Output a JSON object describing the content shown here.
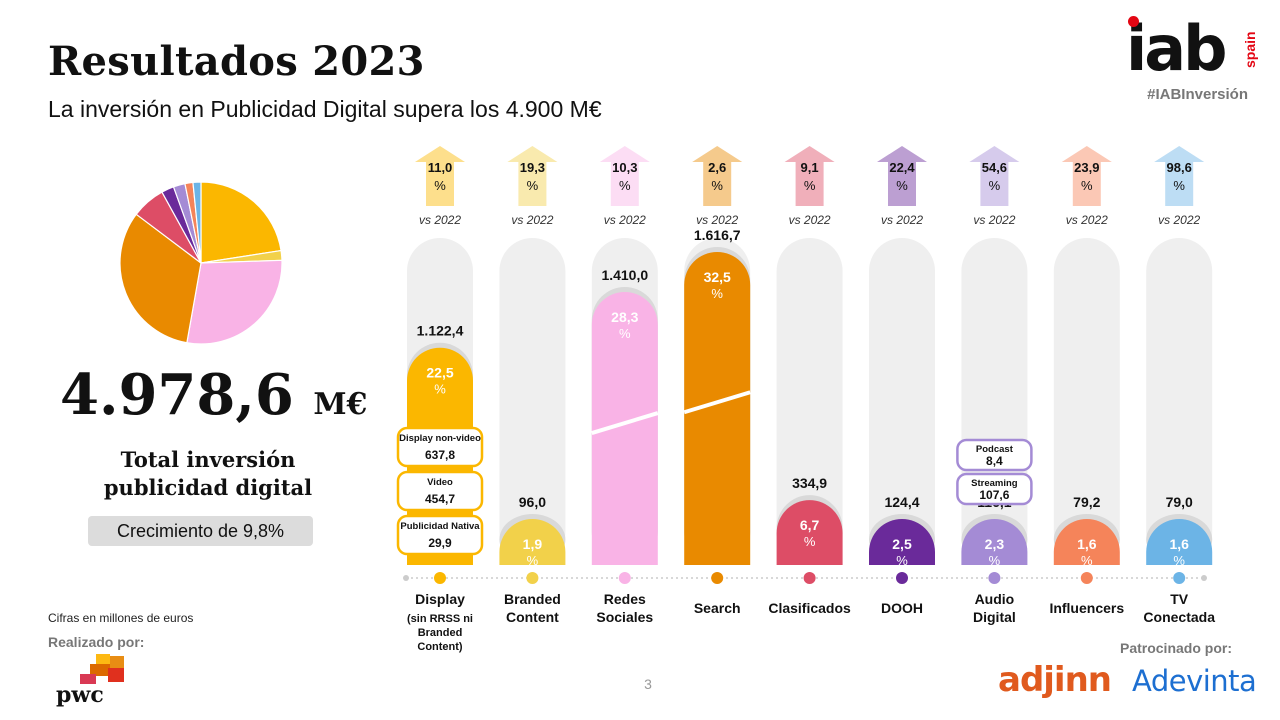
{
  "header": {
    "title": "Resultados 2023",
    "subtitle": "La inversión en Publicidad Digital supera los 4.900 M€"
  },
  "logo": {
    "brand": "iab",
    "region": "spain",
    "hashtag": "#IABInversión"
  },
  "summary": {
    "total_value": "4.978,6",
    "total_unit": "M€",
    "total_label_line1": "Total inversión",
    "total_label_line2": "publicidad digital",
    "growth": "Crecimiento de 9,8%"
  },
  "footer": {
    "note": "Cifras en millones de euros",
    "made_by": "Realizado por:",
    "made_by_brand": "pwc",
    "page_number": "3",
    "sponsored_by": "Patrocinado por:",
    "sponsor_1": "adjinn",
    "sponsor_2": "Adevinta"
  },
  "chart_data": [
    {
      "type": "pie",
      "categories": [
        "Display (sin RRSS ni Branded Content)",
        "Branded Content",
        "Redes Sociales",
        "Search",
        "Clasificados",
        "DOOH",
        "Audio Digital",
        "Influencers",
        "TV Conectada"
      ],
      "values": [
        1122.4,
        96.0,
        1410.0,
        1616.7,
        334.9,
        124.4,
        116.1,
        79.2,
        79.0
      ],
      "colors": [
        "#fbb700",
        "#f2d14a",
        "#f9b3e6",
        "#e98a00",
        "#dd4d66",
        "#6a2a9a",
        "#a48bd5",
        "#f5845a",
        "#6cb4e6"
      ]
    },
    {
      "type": "bar",
      "unit": "M€",
      "comparison_label": "vs 2022",
      "categories": [
        {
          "name": "display",
          "label_lines": [
            "Display",
            "(sin RRSS ni",
            "Branded",
            "Content)"
          ],
          "value": 1122.4,
          "value_label": "1.122,4",
          "share": 22.5,
          "share_label": "22,5",
          "growth": 11.0,
          "growth_label": "11,0",
          "color": "#fbb700"
        },
        {
          "name": "branded-content",
          "label_lines": [
            "Branded",
            "Content"
          ],
          "value": 96.0,
          "value_label": "96,0",
          "share": 1.9,
          "share_label": "1,9",
          "growth": 19.3,
          "growth_label": "19,3",
          "color": "#f2d14a"
        },
        {
          "name": "redes-sociales",
          "label_lines": [
            "Redes",
            "Sociales"
          ],
          "value": 1410.0,
          "value_label": "1.410,0",
          "share": 28.3,
          "share_label": "28,3",
          "growth": 10.3,
          "growth_label": "10,3",
          "color": "#f9b3e6"
        },
        {
          "name": "search",
          "label_lines": [
            "Search"
          ],
          "value": 1616.7,
          "value_label": "1.616,7",
          "share": 32.5,
          "share_label": "32,5",
          "growth": 2.6,
          "growth_label": "2,6",
          "color": "#e98a00"
        },
        {
          "name": "clasificados",
          "label_lines": [
            "Clasificados"
          ],
          "value": 334.9,
          "value_label": "334,9",
          "share": 6.7,
          "share_label": "6,7",
          "growth": 9.1,
          "growth_label": "9,1",
          "color": "#dd4d66"
        },
        {
          "name": "dooh",
          "label_lines": [
            "DOOH"
          ],
          "value": 124.4,
          "value_label": "124,4",
          "share": 2.5,
          "share_label": "2,5",
          "growth": 22.4,
          "growth_label": "22,4",
          "color": "#6a2a9a"
        },
        {
          "name": "audio-digital",
          "label_lines": [
            "Audio",
            "Digital"
          ],
          "value": 116.1,
          "value_label": "116,1",
          "share": 2.3,
          "share_label": "2,3",
          "growth": 54.6,
          "growth_label": "54,6",
          "color": "#a48bd5"
        },
        {
          "name": "influencers",
          "label_lines": [
            "Influencers"
          ],
          "value": 79.2,
          "value_label": "79,2",
          "share": 1.6,
          "share_label": "1,6",
          "growth": 23.9,
          "growth_label": "23,9",
          "color": "#f5845a"
        },
        {
          "name": "tv-conectada",
          "label_lines": [
            "TV",
            "Conectada"
          ],
          "value": 79.0,
          "value_label": "79,0",
          "share": 1.6,
          "share_label": "1,6",
          "growth": 98.6,
          "growth_label": "98,6",
          "color": "#6cb4e6"
        }
      ],
      "breakdowns": [
        {
          "parent": "display",
          "items": [
            {
              "label": "Display non-video",
              "value_label": "637,8"
            },
            {
              "label": "Video",
              "value_label": "454,7"
            },
            {
              "label": "Publicidad Nativa",
              "value_label": "29,9"
            }
          ]
        },
        {
          "parent": "audio-digital",
          "items": [
            {
              "label": "Podcast",
              "value_label": "8,4"
            },
            {
              "label": "Streaming",
              "value_label": "107,6"
            }
          ]
        }
      ]
    }
  ]
}
